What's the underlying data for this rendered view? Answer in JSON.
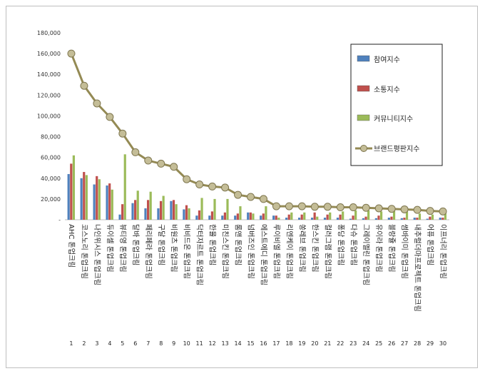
{
  "chart_data": {
    "type": "bar",
    "y_ticks": [
      "180,000",
      "160,000",
      "140,000",
      "120,000",
      "100,000",
      "80,000",
      "60,000",
      "40,000",
      "20,000",
      "-"
    ],
    "ylim": [
      0,
      180000
    ],
    "grid": false,
    "legend_position": "right",
    "ranks": [
      "1",
      "2",
      "3",
      "4",
      "5",
      "6",
      "7",
      "8",
      "9",
      "10",
      "11",
      "12",
      "13",
      "14",
      "15",
      "16",
      "17",
      "18",
      "19",
      "20",
      "21",
      "22",
      "23",
      "24",
      "25",
      "26",
      "27",
      "28",
      "29",
      "30"
    ],
    "categories": [
      "AHC 톤업크림",
      "코스노리 톤업크림",
      "나인위시스 톤업크림",
      "듀이셀 톤업크림",
      "뷰티영 톤업크림",
      "달바 톤업크림",
      "페리페라 톤업크림",
      "구달 톤업크림",
      "비원츠 톤업크림",
      "비비드온 톤업크림",
      "닥터자르트 톤업크림",
      "한율 톤업크림",
      "미친스킨 톤업크림",
      "롬앤 톤업크림",
      "넘버즈인 톤업크림",
      "에스트에디 톤업크림",
      "루이비엘 톤업크림",
      "리엔케이 톤업크림",
      "쏭레브 톤업크림",
      "한스킨 톤업크림",
      "컬러그램 톤업크림",
      "퐁당 톤업크림",
      "다슈 톤업크림",
      "그레이멜린 톤업크림",
      "유이라 톤업크림",
      "블랑쥴 톤업크림",
      "썸바이미 톤업크림",
      "내추럴더마프로젝트 톤업크림",
      "어퓨 톤업크림",
      "이프너리 톤업크림"
    ],
    "series": [
      {
        "name": "참여지수",
        "color": "#4f81bd",
        "kind": "bar",
        "values": [
          44000,
          40000,
          34000,
          33000,
          5000,
          16000,
          11000,
          11000,
          18000,
          10000,
          4000,
          4000,
          4000,
          4000,
          7000,
          4000,
          4000,
          2000,
          2000,
          2000,
          2000,
          2000,
          1000,
          1500,
          1500,
          2000,
          1500,
          2000,
          1000,
          2000
        ]
      },
      {
        "name": "소통지수",
        "color": "#c0504d",
        "kind": "bar",
        "values": [
          54000,
          46000,
          42000,
          35000,
          15000,
          19000,
          19000,
          18000,
          19000,
          14000,
          9000,
          8000,
          7000,
          6000,
          7000,
          6000,
          4000,
          5000,
          5000,
          7000,
          5000,
          5000,
          4000,
          3000,
          4000,
          3000,
          2000,
          2000,
          3000,
          2000
        ]
      },
      {
        "name": "커뮤니티지수",
        "color": "#9bbb59",
        "kind": "bar",
        "values": [
          62000,
          43000,
          39000,
          29000,
          63000,
          28000,
          27000,
          23000,
          15000,
          11000,
          21000,
          20000,
          20000,
          13000,
          6000,
          13000,
          2000,
          7000,
          7000,
          3000,
          7000,
          8000,
          9000,
          9000,
          8000,
          9000,
          8000,
          6000,
          5000,
          6000
        ]
      },
      {
        "name": "브랜드평판지수",
        "color": "#948a54",
        "kind": "line",
        "values": [
          160000,
          129000,
          112000,
          99000,
          83000,
          65000,
          57000,
          54000,
          51000,
          39000,
          34000,
          32000,
          31000,
          24000,
          22000,
          20000,
          13000,
          13000,
          13000,
          12500,
          12500,
          12000,
          12000,
          11500,
          11000,
          10500,
          10000,
          9500,
          8500,
          8000
        ]
      }
    ]
  }
}
